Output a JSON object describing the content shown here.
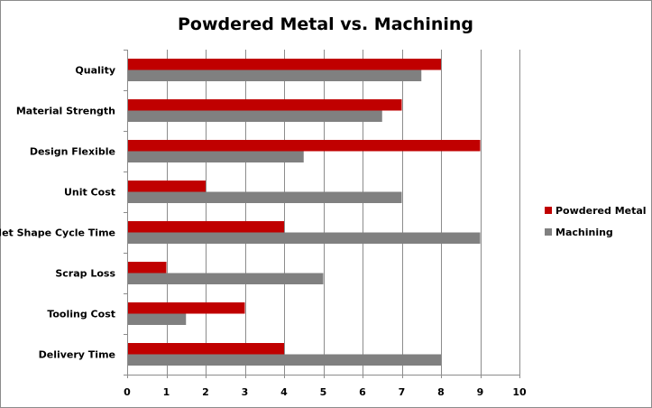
{
  "chart_data": {
    "type": "bar",
    "orientation": "horizontal",
    "title": "Powdered Metal vs. Machining",
    "categories": [
      "Quality",
      "Material Strength",
      "Design Flexible",
      "Unit Cost",
      "Net Shape Cycle Time",
      "Scrap Loss",
      "Tooling Cost",
      "Delivery Time"
    ],
    "series": [
      {
        "name": "Powdered Metal",
        "color": "#c00000",
        "values": [
          8,
          7,
          9,
          2,
          4,
          1,
          3,
          4
        ]
      },
      {
        "name": "Machining",
        "color": "#808080",
        "values": [
          7.5,
          6.5,
          4.5,
          7,
          9,
          5,
          1.5,
          8
        ]
      }
    ],
    "xlim": [
      0,
      10
    ],
    "xticks": [
      "0",
      "1",
      "2",
      "3",
      "4",
      "5",
      "6",
      "7",
      "8",
      "9",
      "10"
    ],
    "grid": true,
    "legend_position": "right"
  }
}
